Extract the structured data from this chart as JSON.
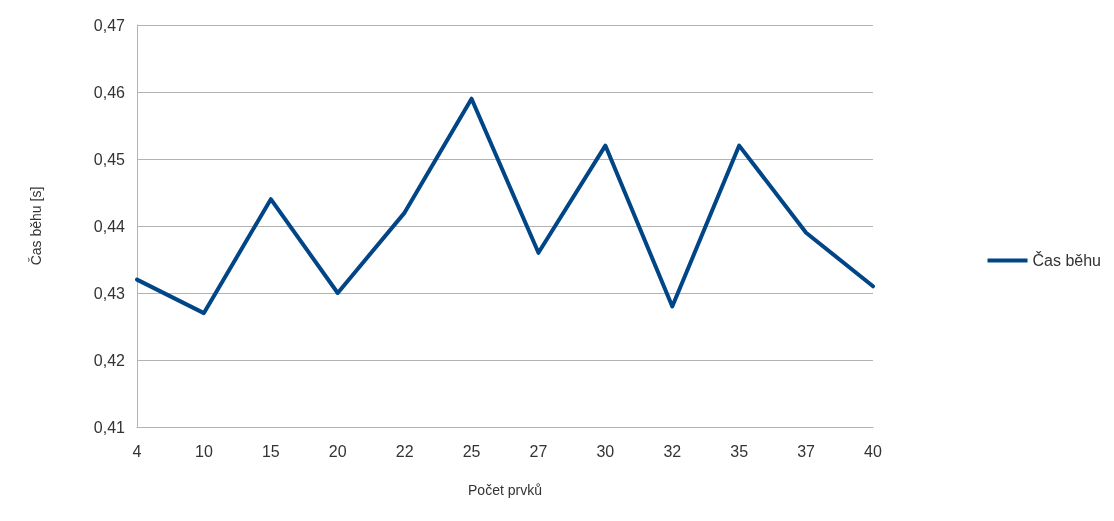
{
  "chart_data": {
    "type": "line",
    "xlabel": "Počet prvků",
    "ylabel": "Čas běhu [s]",
    "categories": [
      "4",
      "10",
      "15",
      "20",
      "22",
      "25",
      "27",
      "30",
      "32",
      "35",
      "37",
      "40"
    ],
    "series": [
      {
        "name": "Čas běhu",
        "color": "#004586",
        "values": [
          0.432,
          0.427,
          0.444,
          0.43,
          0.442,
          0.459,
          0.436,
          0.452,
          0.428,
          0.452,
          0.439,
          0.431
        ]
      }
    ],
    "ylim": [
      0.41,
      0.47
    ],
    "yticks": [
      {
        "value": 0.41,
        "label": "0,41"
      },
      {
        "value": 0.42,
        "label": "0,42"
      },
      {
        "value": 0.43,
        "label": "0,43"
      },
      {
        "value": 0.44,
        "label": "0,44"
      },
      {
        "value": 0.45,
        "label": "0,45"
      },
      {
        "value": 0.46,
        "label": "0,46"
      },
      {
        "value": 0.47,
        "label": "0,47"
      }
    ],
    "grid": "y",
    "legend": "right",
    "marker": "none",
    "line_style": "solid"
  }
}
